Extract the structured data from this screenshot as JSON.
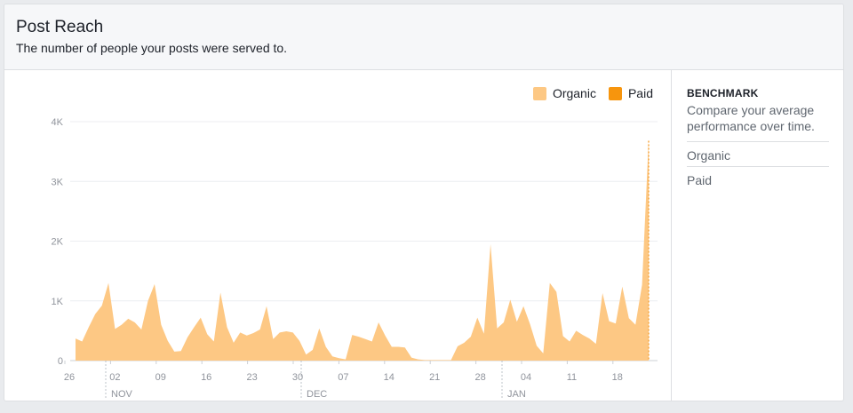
{
  "header": {
    "title": "Post Reach",
    "subtitle": "The number of people your posts were served to."
  },
  "legend": [
    {
      "label": "Organic",
      "color": "#fdc884"
    },
    {
      "label": "Paid",
      "color": "#f7950d"
    }
  ],
  "benchmark": {
    "title": "BENCHMARK",
    "description": "Compare your average performance over time.",
    "items": [
      "Organic",
      "Paid"
    ]
  },
  "chart_data": {
    "type": "area",
    "series": [
      {
        "name": "Organic",
        "color": "#fdc884",
        "values": [
          370,
          320,
          560,
          780,
          920,
          1300,
          530,
          600,
          700,
          640,
          520,
          1000,
          1280,
          600,
          330,
          150,
          160,
          390,
          560,
          720,
          440,
          320,
          1140,
          560,
          300,
          470,
          420,
          460,
          520,
          910,
          360,
          470,
          490,
          470,
          330,
          100,
          180,
          540,
          230,
          70,
          40,
          20,
          430,
          400,
          360,
          320,
          640,
          420,
          230,
          230,
          220,
          50,
          20,
          10,
          10,
          10,
          10,
          10,
          240,
          300,
          400,
          720,
          450,
          1950,
          540,
          640,
          1020,
          650,
          910,
          610,
          250,
          120,
          1300,
          1150,
          410,
          320,
          500,
          430,
          370,
          280,
          1130,
          660,
          620,
          1240,
          710,
          600,
          1270,
          3680
        ]
      },
      {
        "name": "Paid",
        "color": "#f7950d",
        "values": [
          0,
          0,
          0,
          0,
          0,
          0,
          0,
          0,
          0,
          0,
          0,
          0,
          0,
          0,
          0,
          0,
          0,
          0,
          0,
          0,
          0,
          0,
          0,
          0,
          0,
          0,
          0,
          0,
          0,
          0,
          0,
          0,
          0,
          0,
          0,
          0,
          0,
          0,
          0,
          0,
          0,
          0,
          0,
          0,
          0,
          0,
          0,
          0,
          0,
          0,
          0,
          0,
          0,
          0,
          0,
          0,
          0,
          0,
          0,
          0,
          0,
          0,
          0,
          0,
          0,
          0,
          0,
          0,
          0,
          0,
          0,
          0,
          0,
          0,
          0,
          0,
          0,
          0,
          0,
          0,
          0,
          0,
          0,
          0,
          0,
          0,
          0,
          0
        ]
      }
    ],
    "ylim": [
      0,
      4000
    ],
    "yticks": [
      "0",
      "1K",
      "2K",
      "3K",
      "4K"
    ],
    "xticks": [
      "26",
      "02",
      "09",
      "16",
      "23",
      "30",
      "07",
      "14",
      "21",
      "28",
      "04",
      "11",
      "18"
    ],
    "months": [
      "NOV",
      "DEC",
      "JAN"
    ],
    "grid": true,
    "legend_position": "top-right"
  }
}
